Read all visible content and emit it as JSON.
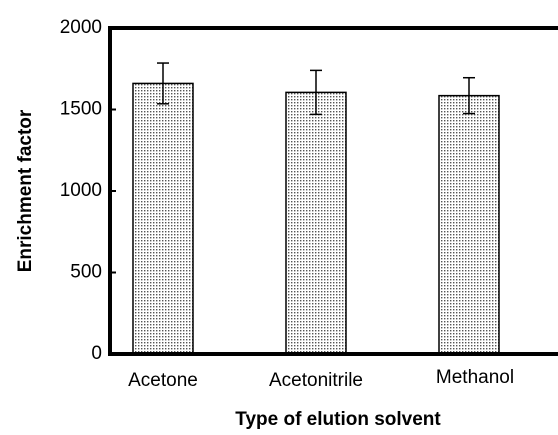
{
  "chart_data": {
    "type": "bar",
    "x_label": "Type of elution solvent",
    "y_label": "Enrichment factor",
    "categories": [
      "Acetone",
      "Acetonitrile",
      "Methanol"
    ],
    "values": [
      1660,
      1605,
      1585
    ],
    "errors": [
      125,
      135,
      110
    ],
    "color": "#555555",
    "ylim": [
      0,
      2000
    ],
    "yticks": [
      0,
      500,
      1000,
      1500,
      2000
    ]
  }
}
